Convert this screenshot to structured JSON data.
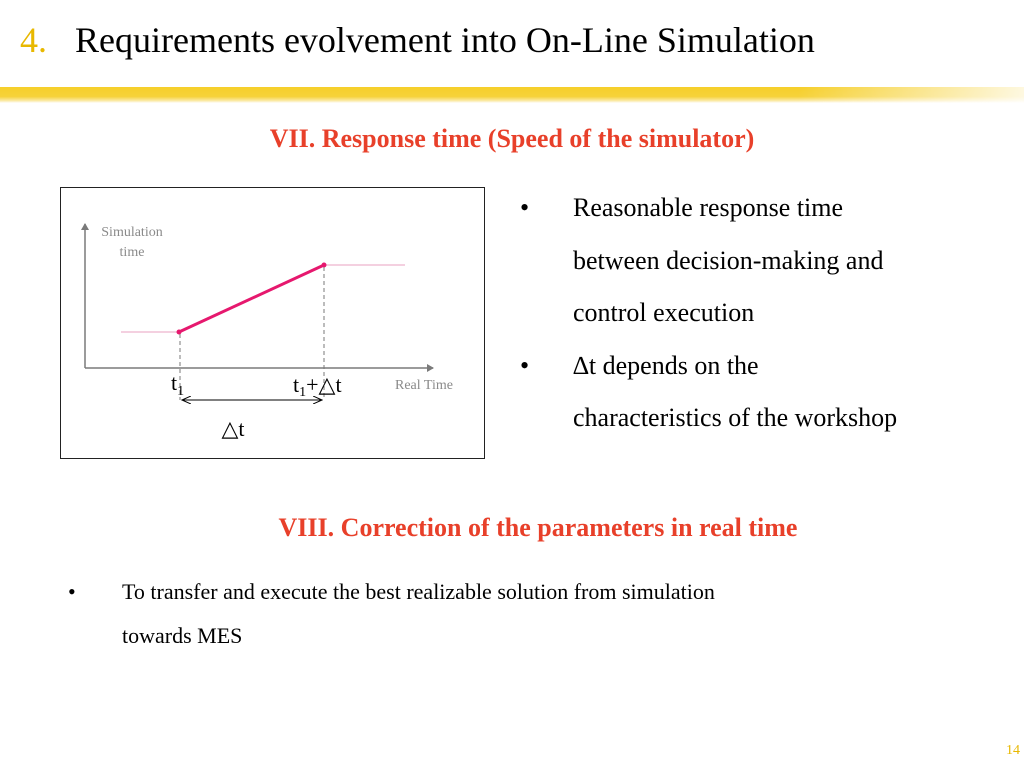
{
  "header": {
    "number": "4.",
    "title": "Requirements evolvement into On-Line Simulation"
  },
  "section7": {
    "heading": "VII. Response time (Speed of the simulator)",
    "figure": {
      "y_label_1": "Simulation",
      "y_label_2": "time",
      "x_label": "Real Time",
      "t1_base": "t",
      "t1_sub": "1",
      "t1dt_base": "t",
      "t1dt_sub": "1",
      "t1dt_rest": "+△t",
      "dt_label": "△t"
    },
    "bullets": {
      "b1_line1": "Reasonable response time",
      "b1_line2": "between decision-making and",
      "b1_line3": "control execution",
      "b2_line1": "∆t depends on the",
      "b2_line2": "characteristics of the workshop"
    }
  },
  "section8": {
    "heading": "VIII. Correction of the parameters in real time",
    "bullet_line1": "To transfer and execute the best realizable solution from simulation",
    "bullet_line2": "towards MES"
  },
  "bullet_symbol": "•",
  "page_number": "14",
  "colors": {
    "accent_yellow": "#e8b800",
    "heading_red": "#e8402a",
    "line_pink": "#e6186e"
  }
}
